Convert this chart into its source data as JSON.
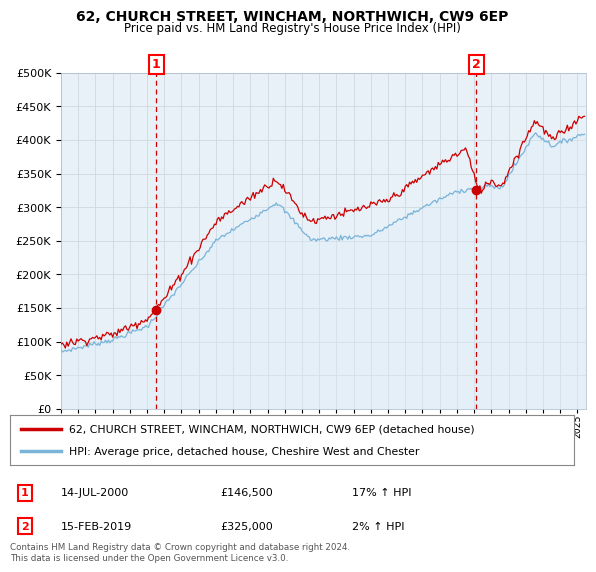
{
  "title": "62, CHURCH STREET, WINCHAM, NORTHWICH, CW9 6EP",
  "subtitle": "Price paid vs. HM Land Registry's House Price Index (HPI)",
  "legend_line1": "62, CHURCH STREET, WINCHAM, NORTHWICH, CW9 6EP (detached house)",
  "legend_line2": "HPI: Average price, detached house, Cheshire West and Chester",
  "annotation1_label": "1",
  "annotation1_date": "14-JUL-2000",
  "annotation1_price": "£146,500",
  "annotation1_hpi": "17% ↑ HPI",
  "annotation2_label": "2",
  "annotation2_date": "15-FEB-2019",
  "annotation2_price": "£325,000",
  "annotation2_hpi": "2% ↑ HPI",
  "footer": "Contains HM Land Registry data © Crown copyright and database right 2024.\nThis data is licensed under the Open Government Licence v3.0.",
  "sale1_year": 2000.54,
  "sale1_price": 146500,
  "sale2_year": 2019.12,
  "sale2_price": 325000,
  "hpi_color": "#7ab4d8",
  "hpi_fill_color": "#ddeef8",
  "price_color": "#cc0000",
  "vline_color": "#cc0000",
  "grid_color": "#d0d8e0",
  "plot_bg_color": "#e8f0f8",
  "background_color": "#ffffff",
  "ylim": [
    0,
    500000
  ],
  "xlim_start": 1995.0,
  "xlim_end": 2025.5,
  "ytick_step": 50000
}
